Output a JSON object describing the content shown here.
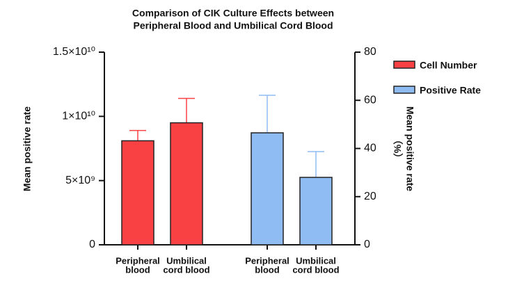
{
  "chart_data": {
    "type": "bar",
    "title": [
      "Comparison of CIK Culture Effects between",
      "Peripheral Blood and Umbilical Cord Blood"
    ],
    "y_label": "Mean positive rate",
    "y2_label": [
      "Mean positive rate",
      "（%）"
    ],
    "categories": [
      [
        "Peripheral",
        "blood"
      ],
      [
        "Umbilical",
        "cord blood"
      ],
      [
        "Peripheral",
        "blood"
      ],
      [
        "Umbilical",
        "cord blood"
      ]
    ],
    "series": [
      {
        "name": "Cell Number",
        "color": "#f94144",
        "values": [
          8100000000,
          9500000000,
          null,
          null
        ],
        "errors": [
          800000000,
          1900000000,
          null,
          null
        ]
      },
      {
        "name": "Positive Rate",
        "color": "#8fbcf3",
        "axis": "y2",
        "values": [
          null,
          null,
          46.5,
          28
        ],
        "errors": [
          null,
          null,
          15.6,
          10.7
        ]
      }
    ],
    "ylim": [
      0,
      15000000000
    ],
    "yticks": [
      0,
      {
        "value": 5000000000,
        "label": "5×10⁹"
      },
      {
        "value": 10000000000,
        "label": "1×10¹⁰"
      },
      {
        "value": 15000000000,
        "label": "1.5×10¹⁰"
      }
    ],
    "y2lim": [
      0,
      80
    ],
    "y2ticks": [
      0,
      20,
      40,
      60,
      80
    ],
    "legend": "top-right"
  }
}
